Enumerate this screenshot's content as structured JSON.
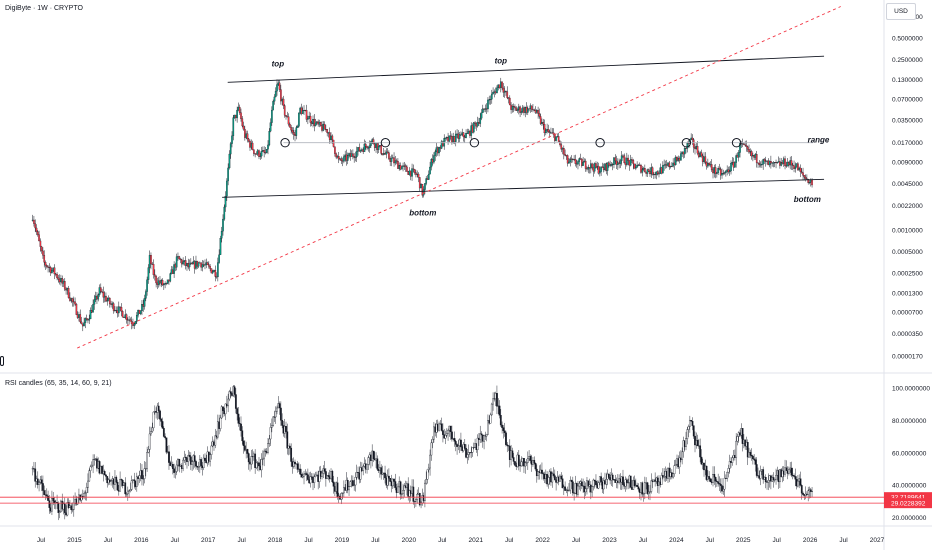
{
  "header": {
    "symbol_title": "DigiByte · 1W · CRYPTO",
    "currency": "USD"
  },
  "rsi_panel": {
    "title": "RSI candles (65, 35, 14, 60, 9, 21)"
  },
  "chart_data": [
    {
      "type": "candlestick",
      "title": "DigiByte · 1W · CRYPTO",
      "y_scale": "log",
      "ylim": [
        1.4e-05,
        1.25
      ],
      "y_ticks": [
        "1.0000000",
        "0.5000000",
        "0.2500000",
        "0.1300000",
        "0.0700000",
        "0.0350000",
        "0.0170000",
        "0.0090000",
        "0.0045000",
        "0.0022000",
        "0.0010000",
        "0.0005000",
        "0.0002500",
        "0.0001300",
        "0.0000700",
        "0.0000350",
        "0.0000170"
      ],
      "x_ticks": [
        "Jul",
        "2015",
        "Jul",
        "2016",
        "Jul",
        "2017",
        "Jul",
        "2018",
        "Jul",
        "2019",
        "Jul",
        "2020",
        "Jul",
        "2021",
        "Jul",
        "2022",
        "Jul",
        "2023",
        "Jul",
        "2024",
        "Jul",
        "2025",
        "Jul",
        "2026",
        "Jul",
        "2027"
      ],
      "x_range": [
        "2014-04",
        "2027-02"
      ],
      "approx_weekly_close_path": [
        [
          "2014-05",
          0.0016
        ],
        [
          "2014-07",
          0.00035
        ],
        [
          "2014-09",
          0.00025
        ],
        [
          "2014-11",
          0.00015
        ],
        [
          "2015-01",
          7e-05
        ],
        [
          "2015-02",
          4.5e-05
        ],
        [
          "2015-03",
          6e-05
        ],
        [
          "2015-05",
          0.00014
        ],
        [
          "2015-07",
          9e-05
        ],
        [
          "2015-09",
          7e-05
        ],
        [
          "2015-11",
          5e-05
        ],
        [
          "2016-01",
          9e-05
        ],
        [
          "2016-02",
          0.0004
        ],
        [
          "2016-03",
          0.0002
        ],
        [
          "2016-05",
          0.00016
        ],
        [
          "2016-07",
          0.0004
        ],
        [
          "2016-09",
          0.0003
        ],
        [
          "2016-11",
          0.00035
        ],
        [
          "2017-01",
          0.00028
        ],
        [
          "2017-02",
          0.00025
        ],
        [
          "2017-03",
          0.0012
        ],
        [
          "2017-04",
          0.006
        ],
        [
          "2017-05",
          0.035
        ],
        [
          "2017-06",
          0.05
        ],
        [
          "2017-07",
          0.022
        ],
        [
          "2017-09",
          0.012
        ],
        [
          "2017-11",
          0.012
        ],
        [
          "2017-12",
          0.05
        ],
        [
          "2018-01",
          0.12
        ],
        [
          "2018-02",
          0.05
        ],
        [
          "2018-04",
          0.02
        ],
        [
          "2018-05",
          0.05
        ],
        [
          "2018-08",
          0.03
        ],
        [
          "2018-10",
          0.025
        ],
        [
          "2018-12",
          0.009
        ],
        [
          "2019-02",
          0.011
        ],
        [
          "2019-04",
          0.014
        ],
        [
          "2019-06",
          0.018
        ],
        [
          "2019-08",
          0.012
        ],
        [
          "2019-10",
          0.009
        ],
        [
          "2019-12",
          0.007
        ],
        [
          "2020-02",
          0.006
        ],
        [
          "2020-03",
          0.0032
        ],
        [
          "2020-05",
          0.012
        ],
        [
          "2020-07",
          0.018
        ],
        [
          "2020-09",
          0.02
        ],
        [
          "2020-11",
          0.022
        ],
        [
          "2021-01",
          0.035
        ],
        [
          "2021-03",
          0.07
        ],
        [
          "2021-05",
          0.12
        ],
        [
          "2021-07",
          0.05
        ],
        [
          "2021-09",
          0.05
        ],
        [
          "2021-11",
          0.05
        ],
        [
          "2022-01",
          0.025
        ],
        [
          "2022-03",
          0.02
        ],
        [
          "2022-05",
          0.009
        ],
        [
          "2022-07",
          0.009
        ],
        [
          "2022-09",
          0.008
        ],
        [
          "2022-11",
          0.007
        ],
        [
          "2023-01",
          0.009
        ],
        [
          "2023-03",
          0.01
        ],
        [
          "2023-05",
          0.008
        ],
        [
          "2023-07",
          0.007
        ],
        [
          "2023-09",
          0.0065
        ],
        [
          "2023-11",
          0.008
        ],
        [
          "2024-01",
          0.01
        ],
        [
          "2024-03",
          0.018
        ],
        [
          "2024-05",
          0.011
        ],
        [
          "2024-07",
          0.007
        ],
        [
          "2024-09",
          0.006
        ],
        [
          "2024-11",
          0.009
        ],
        [
          "2024-12",
          0.016
        ],
        [
          "2025-02",
          0.011
        ],
        [
          "2025-04",
          0.009
        ],
        [
          "2025-06",
          0.008
        ],
        [
          "2025-08",
          0.009
        ],
        [
          "2025-10",
          0.008
        ],
        [
          "2025-11",
          0.006
        ],
        [
          "2026-01",
          0.0045
        ]
      ],
      "annotations": [
        {
          "text": "top",
          "at": [
            "2018-01",
            0.2
          ]
        },
        {
          "text": "top",
          "at": [
            "2021-05",
            0.22
          ]
        },
        {
          "text": "range",
          "at": [
            "2026-02",
            0.017
          ]
        },
        {
          "text": "bottom",
          "at": [
            "2020-03",
            0.0016
          ]
        },
        {
          "text": "bottom",
          "at": [
            "2025-12",
            0.0025
          ]
        }
      ],
      "trend_lines": [
        {
          "name": "upper channel",
          "from": [
            "2017-04",
            0.12
          ],
          "to": [
            "2026-03",
            0.28
          ]
        },
        {
          "name": "lower channel",
          "from": [
            "2017-03",
            0.0029
          ],
          "to": [
            "2026-03",
            0.0052
          ]
        },
        {
          "name": "range level",
          "from": [
            "2018-02",
            0.017
          ],
          "to": [
            "2026-01",
            0.017
          ],
          "color": "#b2b5be"
        },
        {
          "name": "log trend",
          "from": [
            "2015-01",
            2.2e-05
          ],
          "to": [
            "2026-06",
            1.4
          ],
          "color": "#f23645",
          "dashed": true
        }
      ]
    },
    {
      "type": "candlestick-oscillator",
      "title": "RSI candles (65, 35, 14, 60, 9, 21)",
      "ylim": [
        18,
        102
      ],
      "y_ticks": [
        "100.0000000",
        "80.0000000",
        "60.0000000",
        "40.0000000",
        "20.0000000"
      ],
      "current_labels": [
        "32.7189641",
        "29.0228392"
      ],
      "label_color": "#f23645",
      "approx_path": [
        [
          "2014-05",
          50
        ],
        [
          "2014-08",
          28
        ],
        [
          "2014-11",
          26
        ],
        [
          "2015-02",
          32
        ],
        [
          "2015-04",
          55
        ],
        [
          "2015-07",
          42
        ],
        [
          "2015-10",
          38
        ],
        [
          "2016-01",
          48
        ],
        [
          "2016-03",
          90
        ],
        [
          "2016-06",
          50
        ],
        [
          "2016-09",
          58
        ],
        [
          "2016-12",
          52
        ],
        [
          "2017-03",
          85
        ],
        [
          "2017-05",
          99
        ],
        [
          "2017-07",
          60
        ],
        [
          "2017-10",
          52
        ],
        [
          "2018-01",
          88
        ],
        [
          "2018-04",
          50
        ],
        [
          "2018-07",
          45
        ],
        [
          "2018-10",
          48
        ],
        [
          "2018-12",
          35
        ],
        [
          "2019-03",
          45
        ],
        [
          "2019-06",
          58
        ],
        [
          "2019-09",
          40
        ],
        [
          "2019-12",
          38
        ],
        [
          "2020-03",
          30
        ],
        [
          "2020-05",
          75
        ],
        [
          "2020-08",
          72
        ],
        [
          "2020-11",
          60
        ],
        [
          "2021-02",
          70
        ],
        [
          "2021-04",
          95
        ],
        [
          "2021-07",
          55
        ],
        [
          "2021-10",
          55
        ],
        [
          "2022-01",
          45
        ],
        [
          "2022-04",
          42
        ],
        [
          "2022-07",
          38
        ],
        [
          "2022-10",
          40
        ],
        [
          "2023-01",
          45
        ],
        [
          "2023-04",
          42
        ],
        [
          "2023-07",
          38
        ],
        [
          "2023-10",
          42
        ],
        [
          "2024-01",
          55
        ],
        [
          "2024-03",
          78
        ],
        [
          "2024-06",
          45
        ],
        [
          "2024-09",
          40
        ],
        [
          "2024-12",
          72
        ],
        [
          "2025-03",
          48
        ],
        [
          "2025-06",
          44
        ],
        [
          "2025-09",
          50
        ],
        [
          "2025-11",
          38
        ],
        [
          "2026-01",
          32
        ]
      ]
    }
  ]
}
